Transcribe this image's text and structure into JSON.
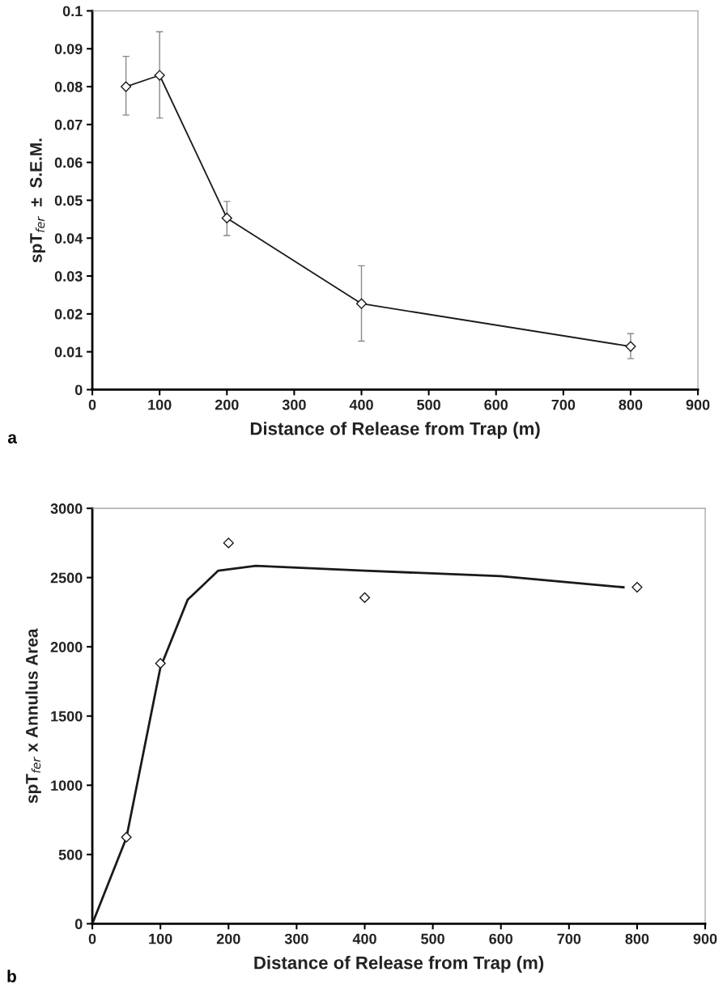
{
  "chart_data": [
    {
      "type": "line",
      "xlabel": "Distance of Release from Trap (m)",
      "ylabel": "spT$_{fer}$  ±  S.E.M.",
      "x": [
        50,
        100,
        200,
        400,
        800
      ],
      "marker": "diamond",
      "grid": false,
      "legend": false,
      "series": [
        {
          "color": "#1a1a1a",
          "values": [
            0.08,
            0.083,
            0.0453,
            0.0227,
            0.0114
          ],
          "errors": [
            [
              0.0725,
              0.088
            ],
            [
              0.0717,
              0.0945
            ],
            [
              0.0407,
              0.0497
            ],
            [
              0.0128,
              0.0327
            ],
            [
              0.0082,
              0.0148
            ]
          ]
        }
      ],
      "xlim": [
        0,
        900
      ],
      "xticks": [
        0,
        100,
        200,
        300,
        400,
        500,
        600,
        700,
        800,
        900
      ],
      "ylim": [
        0,
        0.1
      ],
      "yticks": [
        0,
        0.01,
        0.02,
        0.03,
        0.04,
        0.05,
        0.06,
        0.07,
        0.08,
        0.09,
        0.1
      ],
      "annotations": [
        "a"
      ]
    },
    {
      "type": "scatter",
      "xlabel": "Distance of Release from Trap (m)",
      "ylabel": "spT$_{fer}$ x Annulus Area",
      "x": [
        50,
        100,
        200,
        400,
        800
      ],
      "marker": "diamond",
      "grid": false,
      "legend": false,
      "series": [
        {
          "color": "#1a1a1a",
          "values": [
            625,
            1880,
            2750,
            2355,
            2430
          ]
        },
        {
          "type": "line",
          "marker": "none",
          "color": "#1a1a1a",
          "x": [
            0,
            50,
            100,
            140,
            185,
            240,
            400,
            600,
            780
          ],
          "values": [
            0,
            620,
            1850,
            2340,
            2550,
            2585,
            2550,
            2510,
            2430
          ]
        }
      ],
      "xlim": [
        0,
        900
      ],
      "xticks": [
        0,
        100,
        200,
        300,
        400,
        500,
        600,
        700,
        800,
        900
      ],
      "ylim": [
        0,
        3000
      ],
      "yticks": [
        0,
        500,
        1000,
        1500,
        2000,
        2500,
        3000
      ],
      "annotations": [
        "b"
      ]
    }
  ]
}
